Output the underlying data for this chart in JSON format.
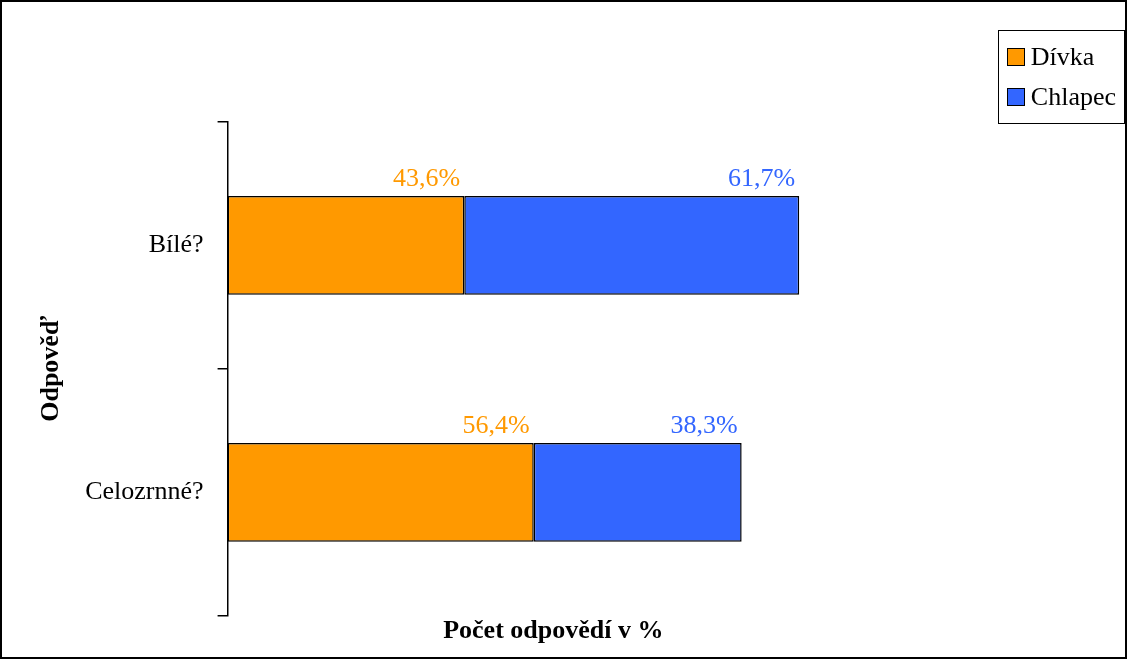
{
  "chart_data": {
    "type": "bar",
    "orientation": "horizontal",
    "stacked": true,
    "xlabel": "Počet odpovědí v %",
    "ylabel": "Odpověď",
    "categories": [
      "Bílé?",
      "Celozrnné?"
    ],
    "series": [
      {
        "name": "Dívka",
        "color": "#ff9900",
        "values": [
          43.6,
          56.4
        ],
        "value_labels": [
          "43,6%",
          "56,4%"
        ]
      },
      {
        "name": "Chlapec",
        "color": "#3366ff",
        "values": [
          61.7,
          38.3
        ],
        "value_labels": [
          "61,7%",
          "38,3%"
        ]
      }
    ],
    "tick_labels": "y",
    "legend": "top right"
  }
}
